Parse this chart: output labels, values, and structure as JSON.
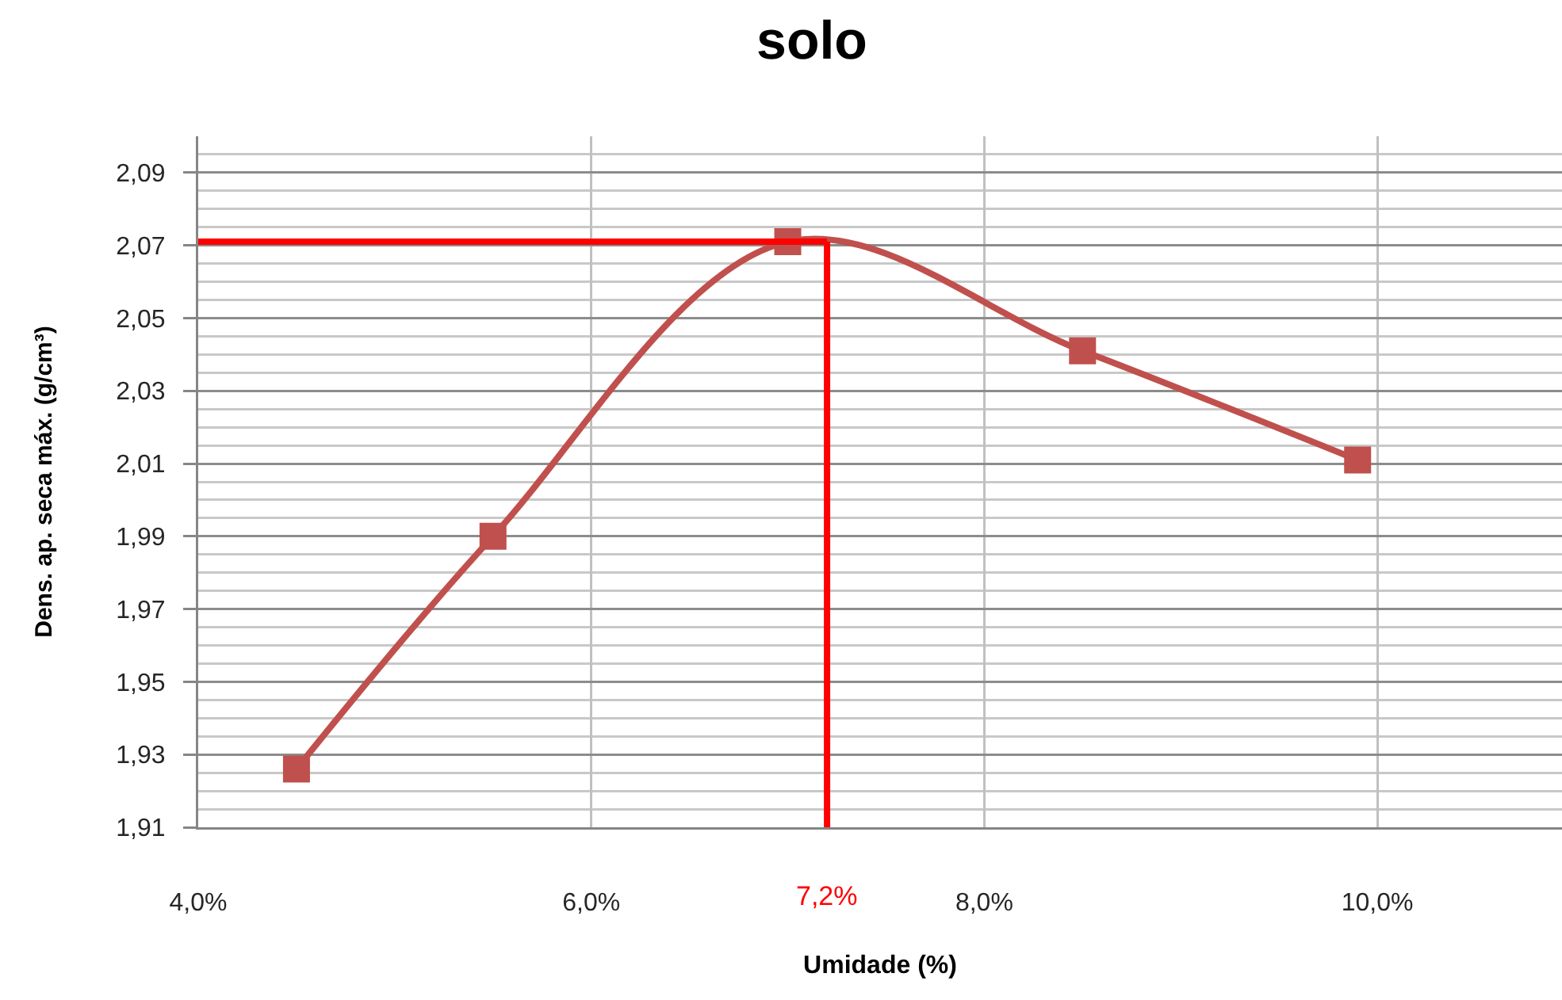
{
  "chart_data": {
    "type": "line",
    "title": "solo",
    "xlabel": "Umidade (%)",
    "ylabel": "Dens. ap. seca máx. (g/cm³)",
    "x": [
      4.5,
      5.5,
      7.0,
      8.5,
      9.9
    ],
    "series": [
      {
        "color": "#c0504d",
        "values": [
          1.926,
          1.99,
          2.071,
          2.041,
          2.011
        ]
      }
    ],
    "xlim": [
      4,
      10.94
    ],
    "xticks": [
      {
        "value": 4,
        "label": "4,0%"
      },
      {
        "value": 6,
        "label": "6,0%"
      },
      {
        "value": 8,
        "label": "8,0%"
      },
      {
        "value": 10,
        "label": "10,0%"
      }
    ],
    "ylim": [
      1.91,
      2.1
    ],
    "yticks": [
      {
        "value": 1.91,
        "label": "1,91"
      },
      {
        "value": 1.93,
        "label": "1,93"
      },
      {
        "value": 1.95,
        "label": "1,95"
      },
      {
        "value": 1.97,
        "label": "1,97"
      },
      {
        "value": 1.99,
        "label": "1,99"
      },
      {
        "value": 2.01,
        "label": "2,01"
      },
      {
        "value": 2.03,
        "label": "2,03"
      },
      {
        "value": 2.05,
        "label": "2,05"
      },
      {
        "value": 2.07,
        "label": "2,07"
      },
      {
        "value": 2.09,
        "label": "2,09"
      }
    ],
    "grid": true,
    "marker": "square",
    "line_style": "solid",
    "ref_lines": [
      {
        "axis": "y",
        "value": 2.071,
        "color": "#ff0000"
      },
      {
        "axis": "x",
        "value": 7.2,
        "label": "7,2%",
        "color": "#ff0000"
      }
    ]
  }
}
